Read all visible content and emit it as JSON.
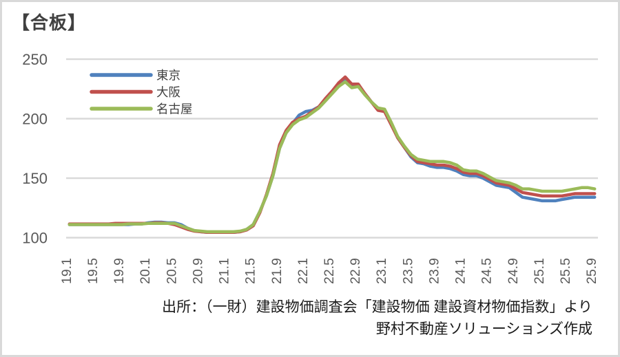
{
  "title": "【合板】",
  "source": {
    "line1": "出所：（一財）建設物価調査会「建設物価 建設資材物価指数」より",
    "line2": "野村不動産ソリューションズ作成"
  },
  "colors": {
    "tokyo": "#4F81BD",
    "osaka": "#C0504D",
    "nagoya": "#9BBB59",
    "gridline": "#D9D9D9",
    "axis_label": "#595959",
    "legend_label": "#404040",
    "frame_border": "#D9D9D9"
  },
  "chart_data": {
    "type": "line",
    "title": "【合板】",
    "grid": "horizontal",
    "legend_position": "top-left-inside",
    "ylim": [
      100,
      250
    ],
    "y_ticks": [
      250,
      200,
      150,
      100
    ],
    "x_tick_every": 4,
    "x": [
      "19.1",
      "19.2",
      "19.3",
      "19.4",
      "19.5",
      "19.6",
      "19.7",
      "19.8",
      "19.9",
      "19.10",
      "19.11",
      "19.12",
      "20.1",
      "20.2",
      "20.3",
      "20.4",
      "20.5",
      "20.6",
      "20.7",
      "20.8",
      "20.9",
      "20.10",
      "20.11",
      "20.12",
      "21.1",
      "21.2",
      "21.3",
      "21.4",
      "21.5",
      "21.6",
      "21.7",
      "21.8",
      "21.9",
      "21.10",
      "21.11",
      "21.12",
      "22.1",
      "22.2",
      "22.3",
      "22.4",
      "22.5",
      "22.6",
      "22.7",
      "22.8",
      "22.9",
      "22.10",
      "22.11",
      "22.12",
      "23.1",
      "23.2",
      "23.3",
      "23.4",
      "23.5",
      "23.6",
      "23.7",
      "23.8",
      "23.9",
      "23.10",
      "23.11",
      "23.12",
      "24.1",
      "24.2",
      "24.3",
      "24.4",
      "24.5",
      "24.6",
      "24.7",
      "24.8",
      "24.9",
      "24.10",
      "24.11",
      "24.12",
      "25.1",
      "25.2",
      "25.3",
      "25.4",
      "25.5",
      "25.6",
      "25.7",
      "25.8",
      "25.9"
    ],
    "series": [
      {
        "name": "東京",
        "color": "#4F81BD",
        "values": [
          111,
          111,
          111,
          111,
          111,
          111,
          111,
          111,
          111,
          111,
          111.5,
          111.5,
          112.5,
          113,
          113,
          112.5,
          112.5,
          111,
          108,
          106,
          105,
          104.5,
          104.5,
          104.5,
          104.5,
          104.5,
          105,
          107,
          111,
          122,
          135,
          152,
          175,
          188,
          196,
          203,
          206,
          207,
          210,
          216,
          222,
          229,
          233,
          227,
          228,
          221,
          214,
          208,
          207,
          196,
          184,
          176,
          168,
          163,
          162,
          160,
          159,
          159,
          158,
          156,
          153,
          152,
          152,
          150,
          147,
          144,
          143,
          142,
          138,
          134,
          133,
          132,
          131,
          131,
          131,
          132,
          133,
          134,
          134,
          134,
          134
        ]
      },
      {
        "name": "大阪",
        "color": "#C0504D",
        "values": [
          111.5,
          111.5,
          111.5,
          111.5,
          111.5,
          111.5,
          111.5,
          112,
          112,
          112,
          112,
          112,
          112,
          112.5,
          112.5,
          112,
          111,
          109,
          107,
          105.5,
          105,
          104.5,
          104.5,
          104.5,
          104.5,
          104.5,
          105,
          106.5,
          110,
          121,
          136,
          154,
          178,
          190,
          197,
          200,
          202,
          206,
          210,
          217,
          223,
          230,
          235,
          229,
          229,
          221,
          214,
          207,
          206,
          195,
          184,
          176,
          169,
          164,
          163,
          162,
          161,
          161,
          160,
          158,
          155,
          154,
          154,
          152,
          149,
          146,
          145,
          144,
          141,
          138,
          137,
          136,
          135,
          135,
          135,
          135,
          136,
          137,
          137,
          137,
          137
        ]
      },
      {
        "name": "名古屋",
        "color": "#9BBB59",
        "values": [
          111,
          111,
          111,
          111,
          111,
          111,
          111,
          111,
          111,
          111.5,
          111.5,
          111.5,
          112,
          112,
          112,
          112,
          112,
          110,
          108,
          106,
          105.5,
          105,
          105,
          105,
          105,
          105,
          105.5,
          107,
          111,
          122,
          135,
          152,
          175,
          188,
          195,
          199,
          201,
          205,
          209,
          215,
          221,
          227,
          231,
          226,
          227,
          220,
          214,
          209,
          208,
          197,
          185,
          177,
          170,
          166,
          165,
          164,
          164,
          164,
          163,
          161,
          157,
          156,
          156,
          154,
          151,
          148,
          147,
          146,
          144,
          141,
          141,
          140,
          139,
          139,
          139,
          139,
          140,
          141,
          142,
          142,
          141
        ]
      }
    ]
  }
}
